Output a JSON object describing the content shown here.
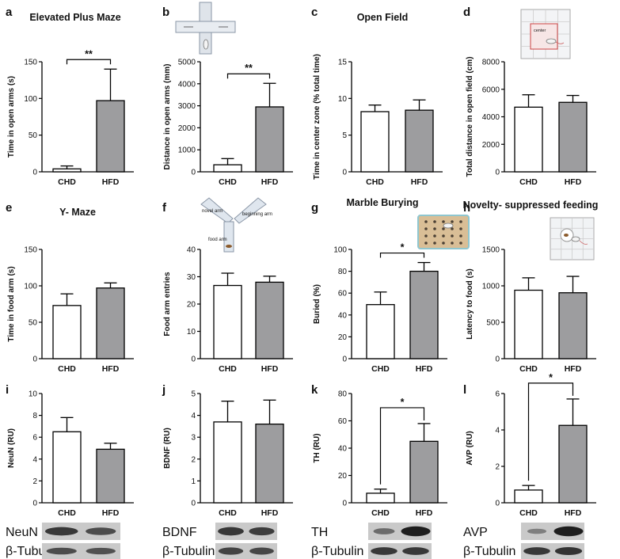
{
  "colors": {
    "chd_fill": "#ffffff",
    "hfd_fill": "#9d9d9f",
    "stroke": "#000000",
    "blot_bg": "#c9c9c9",
    "blot_band": "#1e1e1e"
  },
  "chart_data": [
    {
      "id": "a",
      "type": "bar",
      "panel_label": "a",
      "title": "Elevated Plus Maze",
      "ylabel": "Time in open arms (s)",
      "categories": [
        "CHD",
        "HFD"
      ],
      "values": [
        4,
        97
      ],
      "errors": [
        4,
        43
      ],
      "ylim": [
        0,
        150
      ],
      "yticks": [
        "0",
        "50",
        "100",
        "150"
      ],
      "significance": "**"
    },
    {
      "id": "b",
      "type": "bar",
      "panel_label": "b",
      "title": "",
      "ylabel": "Distance in open arms (mm)",
      "categories": [
        "CHD",
        "HFD"
      ],
      "values": [
        320,
        2950
      ],
      "errors": [
        280,
        1070
      ],
      "ylim": [
        0,
        5000
      ],
      "yticks": [
        "0",
        "1000",
        "2000",
        "3000",
        "4000",
        "5000"
      ],
      "significance": "**"
    },
    {
      "id": "c",
      "type": "bar",
      "panel_label": "c",
      "title": "Open Field",
      "ylabel": "Time in center zone (% total time)",
      "categories": [
        "CHD",
        "HFD"
      ],
      "values": [
        8.2,
        8.4
      ],
      "errors": [
        0.9,
        1.4
      ],
      "ylim": [
        0,
        15
      ],
      "yticks": [
        "0",
        "5",
        "10",
        "15"
      ],
      "significance": ""
    },
    {
      "id": "d",
      "type": "bar",
      "panel_label": "d",
      "title": "",
      "ylabel": "Total distance in open field (cm)",
      "categories": [
        "CHD",
        "HFD"
      ],
      "values": [
        4700,
        5050
      ],
      "errors": [
        900,
        500
      ],
      "ylim": [
        0,
        8000
      ],
      "yticks": [
        "0",
        "2000",
        "4000",
        "6000",
        "8000"
      ],
      "significance": ""
    },
    {
      "id": "e",
      "type": "bar",
      "panel_label": "e",
      "title": "Y- Maze",
      "ylabel": "Time in food arm (s)",
      "categories": [
        "CHD",
        "HFD"
      ],
      "values": [
        73,
        97
      ],
      "errors": [
        16,
        7
      ],
      "ylim": [
        0,
        150
      ],
      "yticks": [
        "0",
        "50",
        "100",
        "150"
      ],
      "significance": ""
    },
    {
      "id": "f",
      "type": "bar",
      "panel_label": "f",
      "title": "",
      "ylabel": "Food arm entries",
      "categories": [
        "CHD",
        "HFD"
      ],
      "values": [
        26.8,
        28
      ],
      "errors": [
        4.5,
        2.2
      ],
      "ylim": [
        0,
        40
      ],
      "yticks": [
        "0",
        "10",
        "20",
        "30",
        "40"
      ],
      "significance": ""
    },
    {
      "id": "g",
      "type": "bar",
      "panel_label": "g",
      "title": "Marble Burying",
      "ylabel": "Buried (%)",
      "categories": [
        "CHD",
        "HFD"
      ],
      "values": [
        49.5,
        80
      ],
      "errors": [
        11.5,
        8
      ],
      "ylim": [
        0,
        100
      ],
      "yticks": [
        "0",
        "20",
        "40",
        "60",
        "80",
        "100"
      ],
      "significance": "*"
    },
    {
      "id": "h",
      "type": "bar",
      "panel_label": "h",
      "title": "Novelty- suppressed feeding",
      "ylabel": "Latency to food (s)",
      "categories": [
        "CHD",
        "HFD"
      ],
      "values": [
        940,
        905
      ],
      "errors": [
        170,
        225
      ],
      "ylim": [
        0,
        1500
      ],
      "yticks": [
        "0",
        "500",
        "1000",
        "1500"
      ],
      "significance": ""
    },
    {
      "id": "i",
      "type": "bar",
      "panel_label": "i",
      "title": "",
      "ylabel": "NeuN (RU)",
      "categories": [
        "CHD",
        "HFD"
      ],
      "values": [
        6.5,
        4.9
      ],
      "errors": [
        1.3,
        0.55
      ],
      "ylim": [
        0,
        10
      ],
      "yticks": [
        "0",
        "2",
        "4",
        "6",
        "8",
        "10"
      ],
      "significance": ""
    },
    {
      "id": "j",
      "type": "bar",
      "panel_label": "j",
      "title": "",
      "ylabel": "BDNF (RU)",
      "categories": [
        "CHD",
        "HFD"
      ],
      "values": [
        3.7,
        3.6
      ],
      "errors": [
        0.95,
        1.1
      ],
      "ylim": [
        0,
        5
      ],
      "yticks": [
        "0",
        "1",
        "2",
        "3",
        "4",
        "5"
      ],
      "significance": ""
    },
    {
      "id": "k",
      "type": "bar",
      "panel_label": "k",
      "title": "",
      "ylabel": "TH (RU)",
      "categories": [
        "CHD",
        "HFD"
      ],
      "values": [
        7,
        45
      ],
      "errors": [
        3,
        13
      ],
      "ylim": [
        0,
        80
      ],
      "yticks": [
        "0",
        "20",
        "40",
        "60",
        "80"
      ],
      "significance": "*"
    },
    {
      "id": "l",
      "type": "bar",
      "panel_label": "l",
      "title": "",
      "ylabel": "AVP (RU)",
      "categories": [
        "CHD",
        "HFD"
      ],
      "values": [
        0.7,
        4.25
      ],
      "errors": [
        0.25,
        1.45
      ],
      "ylim": [
        0,
        6
      ],
      "yticks": [
        "0",
        "2",
        "4",
        "6"
      ],
      "significance": "*"
    }
  ],
  "illustrations": {
    "b": {
      "kind": "plus-maze"
    },
    "d": {
      "kind": "open-field",
      "text": "center"
    },
    "f": {
      "kind": "y-maze",
      "arm_labels": [
        "novel arm",
        "beginning arm",
        "food arm"
      ]
    },
    "g": {
      "kind": "marble-cage"
    },
    "h": {
      "kind": "novelty-arena"
    }
  },
  "blots": [
    {
      "panel": "i",
      "target": "NeuN",
      "loading": "β-Tubulin",
      "target_bands": [
        1.0,
        0.8
      ],
      "loading_bands": [
        0.8,
        0.75
      ]
    },
    {
      "panel": "j",
      "target": "BDNF",
      "loading": "β-Tubulin",
      "target_bands": [
        1.0,
        0.95
      ],
      "loading_bands": [
        0.9,
        0.85
      ]
    },
    {
      "panel": "k",
      "target": "TH",
      "loading": "β-Tubulin",
      "target_bands": [
        0.5,
        1.3
      ],
      "loading_bands": [
        1.0,
        1.0
      ]
    },
    {
      "panel": "l",
      "target": "AVP",
      "loading": "β-Tubulin",
      "target_bands": [
        0.3,
        1.3
      ],
      "loading_bands": [
        1.0,
        1.05
      ]
    }
  ]
}
